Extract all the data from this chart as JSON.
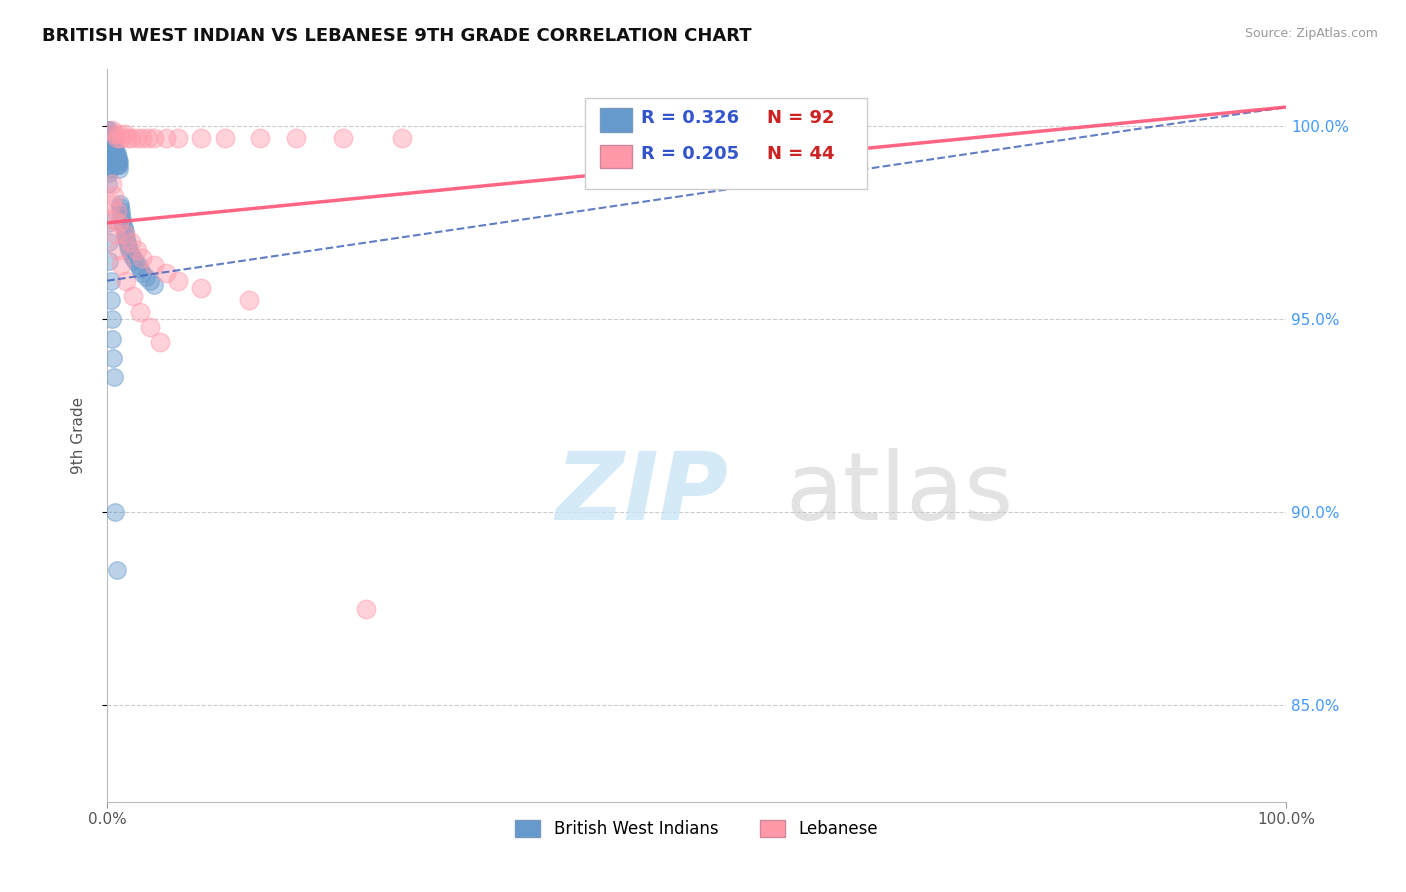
{
  "title": "BRITISH WEST INDIAN VS LEBANESE 9TH GRADE CORRELATION CHART",
  "source": "Source: ZipAtlas.com",
  "ylabel": "9th Grade",
  "xlim": [
    0.0,
    1.0
  ],
  "ylim": [
    0.825,
    1.015
  ],
  "yticks": [
    1.0,
    0.95,
    0.9,
    0.85
  ],
  "ytick_labels": [
    "100.0%",
    "95.0%",
    "90.0%",
    "85.0%"
  ],
  "legend_r1": "R = 0.326",
  "legend_n1": "N = 92",
  "legend_r2": "R = 0.205",
  "legend_n2": "N = 44",
  "legend_label1": "British West Indians",
  "legend_label2": "Lebanese",
  "color_blue": "#6699CC",
  "color_pink": "#FF99AA",
  "trendline_blue": "#4466BB",
  "trendline_pink": "#FF5577",
  "r_color": "#3355CC",
  "n_color": "#CC2222",
  "bwi_x": [
    0.001,
    0.001,
    0.001,
    0.001,
    0.001,
    0.002,
    0.002,
    0.002,
    0.002,
    0.002,
    0.002,
    0.002,
    0.002,
    0.002,
    0.002,
    0.002,
    0.002,
    0.003,
    0.003,
    0.003,
    0.003,
    0.003,
    0.003,
    0.003,
    0.003,
    0.003,
    0.004,
    0.004,
    0.004,
    0.004,
    0.004,
    0.004,
    0.004,
    0.005,
    0.005,
    0.005,
    0.005,
    0.005,
    0.005,
    0.006,
    0.006,
    0.006,
    0.006,
    0.006,
    0.007,
    0.007,
    0.007,
    0.007,
    0.008,
    0.008,
    0.008,
    0.008,
    0.009,
    0.009,
    0.009,
    0.01,
    0.01,
    0.01,
    0.011,
    0.011,
    0.012,
    0.012,
    0.013,
    0.013,
    0.014,
    0.015,
    0.015,
    0.016,
    0.017,
    0.018,
    0.019,
    0.02,
    0.022,
    0.024,
    0.026,
    0.028,
    0.03,
    0.033,
    0.036,
    0.04,
    0.001,
    0.001,
    0.002,
    0.002,
    0.003,
    0.003,
    0.004,
    0.004,
    0.005,
    0.006,
    0.007,
    0.008
  ],
  "bwi_y": [
    0.999,
    0.998,
    0.997,
    0.996,
    0.995,
    0.999,
    0.998,
    0.997,
    0.996,
    0.995,
    0.994,
    0.993,
    0.992,
    0.991,
    0.99,
    0.989,
    0.988,
    0.998,
    0.997,
    0.996,
    0.995,
    0.994,
    0.993,
    0.992,
    0.991,
    0.99,
    0.997,
    0.996,
    0.995,
    0.994,
    0.993,
    0.992,
    0.991,
    0.996,
    0.995,
    0.994,
    0.993,
    0.992,
    0.991,
    0.995,
    0.994,
    0.993,
    0.992,
    0.991,
    0.994,
    0.993,
    0.992,
    0.991,
    0.993,
    0.992,
    0.991,
    0.99,
    0.992,
    0.991,
    0.99,
    0.991,
    0.99,
    0.989,
    0.98,
    0.979,
    0.978,
    0.977,
    0.976,
    0.975,
    0.974,
    0.973,
    0.972,
    0.971,
    0.97,
    0.969,
    0.968,
    0.967,
    0.966,
    0.965,
    0.964,
    0.963,
    0.962,
    0.961,
    0.96,
    0.959,
    0.985,
    0.975,
    0.97,
    0.965,
    0.96,
    0.955,
    0.95,
    0.945,
    0.94,
    0.935,
    0.9,
    0.885
  ],
  "leb_x": [
    0.004,
    0.006,
    0.008,
    0.01,
    0.012,
    0.015,
    0.018,
    0.02,
    0.025,
    0.03,
    0.035,
    0.04,
    0.05,
    0.06,
    0.08,
    0.1,
    0.13,
    0.16,
    0.2,
    0.25,
    0.004,
    0.006,
    0.008,
    0.01,
    0.015,
    0.02,
    0.025,
    0.03,
    0.04,
    0.05,
    0.06,
    0.08,
    0.12,
    0.003,
    0.005,
    0.007,
    0.009,
    0.012,
    0.016,
    0.022,
    0.028,
    0.036,
    0.045,
    0.22
  ],
  "leb_y": [
    0.999,
    0.998,
    0.997,
    0.998,
    0.997,
    0.998,
    0.997,
    0.997,
    0.997,
    0.997,
    0.997,
    0.997,
    0.997,
    0.997,
    0.997,
    0.997,
    0.997,
    0.997,
    0.997,
    0.997,
    0.985,
    0.982,
    0.978,
    0.975,
    0.972,
    0.97,
    0.968,
    0.966,
    0.964,
    0.962,
    0.96,
    0.958,
    0.955,
    0.98,
    0.976,
    0.972,
    0.968,
    0.964,
    0.96,
    0.956,
    0.952,
    0.948,
    0.944,
    0.875
  ],
  "trendline_bwi_x0": 0.0,
  "trendline_bwi_y0": 0.96,
  "trendline_bwi_x1": 1.0,
  "trendline_bwi_y1": 1.005,
  "trendline_leb_x0": 0.0,
  "trendline_leb_y0": 0.975,
  "trendline_leb_x1": 1.0,
  "trendline_leb_y1": 1.005
}
